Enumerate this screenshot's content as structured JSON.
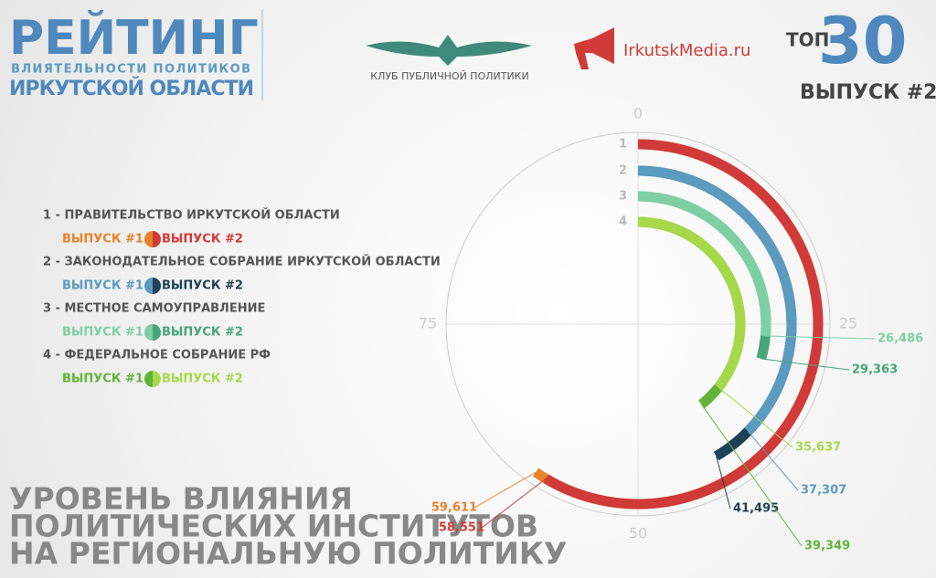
{
  "header": {
    "title": "РЕЙТИНГ",
    "subtitle1": "ВЛИЯТЕЛЬНОСТИ ПОЛИТИКОВ",
    "subtitle2": "ИРКУТСКОЙ ОБЛАСТИ",
    "club": "КЛУБ ПУБЛИЧНОЙ ПОЛИТИКИ",
    "media": "IrkutskMedia.ru",
    "top": "ТОП",
    "top_number": "30",
    "issue": "ВЫПУСК #2"
  },
  "footer": {
    "lines": [
      "УРОВЕНЬ ВЛИЯНИЯ",
      "ПОЛИТИЧЕСКИХ ИНСТИТУТОВ",
      "НА РЕГИОНАЛЬНУЮ ПОЛИТИКУ"
    ]
  },
  "chart_data": {
    "type": "radial_bar",
    "categories": [
      "1",
      "2",
      "3",
      "4"
    ],
    "category_names": [
      "1 - ПРАВИТЕЛЬСТВО ИРКУТСКОЙ ОБЛАСТИ",
      "2 - ЗАКОНОДАТЕЛЬНОЕ СОБРАНИЕ ИРКУТСКОЙ ОБЛАСТИ",
      "3 - МЕСТНОЕ САМОУПРАВЛЕНИЕ",
      "4 - ФЕДЕРАЛЬНОЕ СОБРАНИЕ РФ"
    ],
    "series": [
      {
        "name": "ВЫПУСК #1",
        "colors": [
          "#e8822a",
          "#5b9bc0",
          "#7fcfa4",
          "#62b33a"
        ],
        "values": [
          59.611,
          37.307,
          26.486,
          39.349
        ],
        "value_labels": [
          "59,611",
          "37,307",
          "26,486",
          "39,349"
        ]
      },
      {
        "name": "ВЫПУСК #2",
        "colors": [
          "#d03a38",
          "#1d4156",
          "#48a57a",
          "#a6d84a"
        ],
        "values": [
          58.551,
          41.495,
          29.363,
          35.637
        ],
        "value_labels": [
          "58,551",
          "41,495",
          "29,363",
          "35,637"
        ]
      }
    ],
    "ylim": [
      0,
      100
    ],
    "yticks": [
      0,
      25,
      50,
      75
    ]
  }
}
